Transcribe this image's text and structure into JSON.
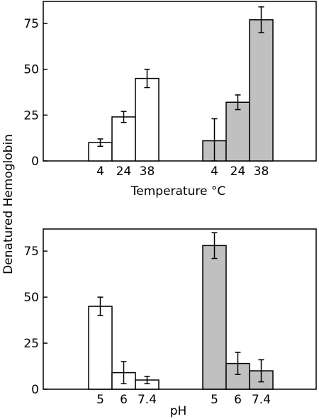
{
  "ylabel": "Denatured Hemoglobin",
  "colors": {
    "open": "#ffffff",
    "filled": "#c0c0c0",
    "stroke": "#000000"
  },
  "chart_data": [
    {
      "type": "bar",
      "xlabel": "Temperature °C",
      "ylim": [
        0,
        87
      ],
      "yticks": [
        0,
        25,
        50,
        75
      ],
      "groups": [
        {
          "fill": "open",
          "categories": [
            "4",
            "24",
            "38"
          ],
          "values": [
            10,
            24,
            45
          ],
          "errors": [
            2,
            3,
            5
          ]
        },
        {
          "fill": "filled",
          "categories": [
            "4",
            "24",
            "38"
          ],
          "values": [
            11,
            32,
            77
          ],
          "errors": [
            12,
            4,
            7
          ]
        }
      ]
    },
    {
      "type": "bar",
      "xlabel": "pH",
      "ylim": [
        0,
        87
      ],
      "yticks": [
        0,
        25,
        50,
        75
      ],
      "groups": [
        {
          "fill": "open",
          "categories": [
            "5",
            "6",
            "7.4"
          ],
          "values": [
            45,
            9,
            5
          ],
          "errors": [
            5,
            6,
            2
          ]
        },
        {
          "fill": "filled",
          "categories": [
            "5",
            "6",
            "7.4"
          ],
          "values": [
            78,
            14,
            10
          ],
          "errors": [
            7,
            6,
            6
          ]
        }
      ]
    }
  ]
}
